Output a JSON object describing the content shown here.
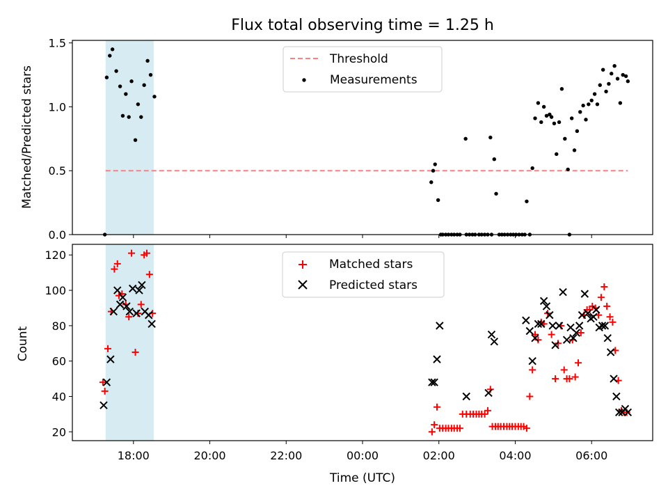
{
  "chart_data": [
    {
      "type": "scatter",
      "title": "Flux total observing time = 1.25 h",
      "ylabel": "Matched/Predicted stars",
      "xlabel": "",
      "x_unit": "hours (UTC); values beyond 24 are the following day",
      "xlim": [
        16.4,
        31.6
      ],
      "ylim": [
        0,
        1.52
      ],
      "yticks": [
        0.0,
        0.5,
        1.0,
        1.5
      ],
      "ytick_labels": [
        "0.0",
        "0.5",
        "1.0",
        "1.5"
      ],
      "xticks": [
        18,
        20,
        22,
        24,
        26,
        28,
        30
      ],
      "xtick_labels": [
        "18:00",
        "20:00",
        "22:00",
        "00:00",
        "02:00",
        "04:00",
        "06:00"
      ],
      "shaded_span": [
        17.27,
        18.53
      ],
      "shaded_color": "#add8e6",
      "threshold": {
        "label": "Threshold",
        "y": 0.5,
        "x_range": [
          17.27,
          30.95
        ],
        "color": "#ff7f7f"
      },
      "legend_position": "upper center",
      "series": [
        {
          "name": "Measurements",
          "color": "#000000",
          "x": [
            17.25,
            17.3,
            17.38,
            17.45,
            17.55,
            17.65,
            17.72,
            17.8,
            17.88,
            17.95,
            18.05,
            18.12,
            18.2,
            18.28,
            18.37,
            18.45,
            18.55,
            25.8,
            25.85,
            25.9,
            25.98,
            26.05,
            26.1,
            26.18,
            26.25,
            26.33,
            26.4,
            26.48,
            26.55,
            26.7,
            26.72,
            26.8,
            26.88,
            26.95,
            27.05,
            27.12,
            27.2,
            27.28,
            27.35,
            27.38,
            27.45,
            27.5,
            27.58,
            27.65,
            27.72,
            27.8,
            27.88,
            27.95,
            28.02,
            28.1,
            28.18,
            28.25,
            28.3,
            28.38,
            28.45,
            28.52,
            28.6,
            28.68,
            28.75,
            28.82,
            28.9,
            28.95,
            29.02,
            29.08,
            29.15,
            29.22,
            29.3,
            29.38,
            29.42,
            29.48,
            29.55,
            29.62,
            29.7,
            29.78,
            29.85,
            29.92,
            30.0,
            30.08,
            30.15,
            30.22,
            30.3,
            30.38,
            30.45,
            30.52,
            30.6,
            30.68,
            30.75,
            30.82,
            30.9,
            30.95
          ],
          "y": [
            0.0,
            1.23,
            1.4,
            1.45,
            1.28,
            1.16,
            0.93,
            1.1,
            0.92,
            1.2,
            0.74,
            1.02,
            0.92,
            1.17,
            1.36,
            1.25,
            1.08,
            0.41,
            0.5,
            0.55,
            0.27,
            0.0,
            0.0,
            0.0,
            0.0,
            0.0,
            0.0,
            0.0,
            0.0,
            0.75,
            0.0,
            0.0,
            0.0,
            0.0,
            0.0,
            0.0,
            0.0,
            0.0,
            0.76,
            0.0,
            0.59,
            0.32,
            0.0,
            0.0,
            0.0,
            0.0,
            0.0,
            0.0,
            0.0,
            0.0,
            0.0,
            0.0,
            0.26,
            0.0,
            0.52,
            0.91,
            1.03,
            0.88,
            1.0,
            0.93,
            0.94,
            0.92,
            0.87,
            0.63,
            0.88,
            1.14,
            0.75,
            0.51,
            0.0,
            0.91,
            0.66,
            0.81,
            0.96,
            1.01,
            0.9,
            1.02,
            1.05,
            1.1,
            1.02,
            1.17,
            1.29,
            1.12,
            1.18,
            1.26,
            1.32,
            1.22,
            1.03,
            1.25,
            1.24,
            1.2
          ]
        }
      ]
    },
    {
      "type": "scatter",
      "title": "",
      "ylabel": "Count",
      "xlabel": "Time (UTC)",
      "xlim": [
        16.4,
        31.6
      ],
      "ylim": [
        15,
        126
      ],
      "yticks": [
        20,
        40,
        60,
        80,
        100,
        120
      ],
      "ytick_labels": [
        "20",
        "40",
        "60",
        "80",
        "100",
        "120"
      ],
      "xticks": [
        18,
        20,
        22,
        24,
        26,
        28,
        30
      ],
      "xtick_labels": [
        "18:00",
        "20:00",
        "22:00",
        "00:00",
        "02:00",
        "04:00",
        "06:00"
      ],
      "shaded_span": [
        17.27,
        18.53
      ],
      "shaded_color": "#add8e6",
      "legend_position": "upper center",
      "series": [
        {
          "name": "Matched stars",
          "marker": "plus",
          "color": "#ff0000",
          "x": [
            17.2,
            17.25,
            17.33,
            17.42,
            17.5,
            17.58,
            17.62,
            17.7,
            17.8,
            17.88,
            17.95,
            18.05,
            18.12,
            18.2,
            18.28,
            18.35,
            18.42,
            18.5,
            25.82,
            25.88,
            25.95,
            26.02,
            26.1,
            26.18,
            26.25,
            26.33,
            26.4,
            26.48,
            26.55,
            26.62,
            26.72,
            26.82,
            26.9,
            26.98,
            27.05,
            27.12,
            27.2,
            27.28,
            27.35,
            27.4,
            27.48,
            27.55,
            27.62,
            27.7,
            27.78,
            27.85,
            27.92,
            28.0,
            28.08,
            28.15,
            28.22,
            28.3,
            28.38,
            28.45,
            28.52,
            28.6,
            28.68,
            28.75,
            28.85,
            28.95,
            29.05,
            29.12,
            29.2,
            29.28,
            29.35,
            29.42,
            29.5,
            29.57,
            29.65,
            29.72,
            29.8,
            29.88,
            29.95,
            30.02,
            30.1,
            30.18,
            30.25,
            30.33,
            30.4,
            30.48,
            30.55,
            30.62,
            30.7,
            30.78,
            30.85,
            30.92
          ],
          "y": [
            48,
            43,
            67,
            88,
            112,
            115,
            97,
            98,
            92,
            85,
            121,
            65,
            87,
            92,
            120,
            121,
            109,
            87,
            20,
            24,
            34,
            22,
            22,
            22,
            22,
            22,
            22,
            22,
            22,
            30,
            30,
            30,
            30,
            30,
            30,
            30,
            30,
            32,
            44,
            23,
            23,
            23,
            23,
            23,
            23,
            23,
            23,
            23,
            23,
            23,
            23,
            22,
            40,
            55,
            75,
            72,
            82,
            81,
            87,
            75,
            50,
            70,
            80,
            55,
            50,
            50,
            72,
            51,
            59,
            76,
            86,
            89,
            89,
            91,
            90,
            86,
            96,
            102,
            91,
            85,
            82,
            66,
            49,
            32,
            31,
            31
          ]
        },
        {
          "name": "Predicted stars",
          "marker": "x",
          "color": "#000000",
          "x": [
            17.22,
            17.3,
            17.4,
            17.48,
            17.58,
            17.65,
            17.72,
            17.82,
            17.9,
            17.98,
            18.08,
            18.15,
            18.22,
            18.3,
            18.4,
            18.48,
            25.82,
            25.88,
            25.95,
            26.02,
            26.72,
            27.3,
            27.38,
            27.45,
            28.28,
            28.38,
            28.45,
            28.52,
            28.6,
            28.68,
            28.75,
            28.82,
            28.9,
            28.98,
            29.05,
            29.15,
            29.25,
            29.35,
            29.45,
            29.52,
            29.6,
            29.68,
            29.75,
            29.82,
            29.9,
            29.98,
            30.05,
            30.12,
            30.2,
            30.28,
            30.35,
            30.42,
            30.5,
            30.58,
            30.65,
            30.72,
            30.8,
            30.88,
            30.95
          ],
          "y": [
            35,
            48,
            61,
            88,
            100,
            92,
            96,
            91,
            88,
            101,
            87,
            100,
            103,
            88,
            86,
            81,
            48,
            48,
            61,
            80,
            40,
            42,
            75,
            71,
            83,
            77,
            60,
            73,
            81,
            81,
            94,
            91,
            86,
            80,
            69,
            80,
            99,
            72,
            79,
            73,
            76,
            80,
            86,
            98,
            87,
            84,
            85,
            89,
            79,
            80,
            80,
            73,
            65,
            50,
            40,
            31,
            31,
            33,
            31
          ]
        }
      ]
    }
  ]
}
